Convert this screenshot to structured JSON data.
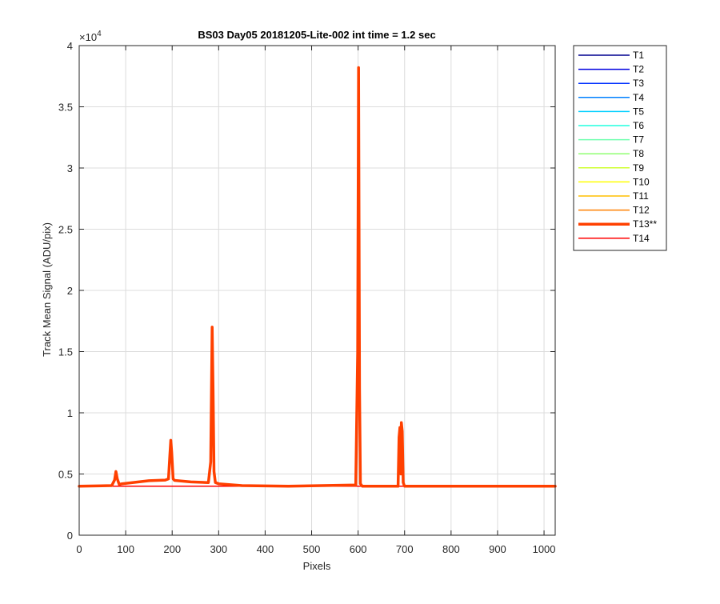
{
  "chart_data": {
    "type": "line",
    "title": "BS03 Day05 20181205-Lite-002 int time = 1.2 sec",
    "xlabel": "Pixels",
    "ylabel": "Track Mean Signal (ADU/pix)",
    "y_exponent_label": "×10",
    "y_exponent_power": "4",
    "xlim": [
      0,
      1024
    ],
    "ylim": [
      0,
      40000
    ],
    "y_scale_factor": 10000,
    "grid": true,
    "legend_position": "outside-right",
    "xticks": [
      0,
      100,
      200,
      300,
      400,
      500,
      600,
      700,
      800,
      900,
      1000
    ],
    "xtick_labels": [
      "0",
      "100",
      "200",
      "300",
      "400",
      "500",
      "600",
      "700",
      "800",
      "900",
      "1000"
    ],
    "yticks": [
      0,
      5000,
      10000,
      15000,
      20000,
      25000,
      30000,
      35000,
      40000
    ],
    "ytick_labels": [
      "0",
      "0.5",
      "1",
      "1.5",
      "2",
      "2.5",
      "3",
      "3.5",
      "4"
    ],
    "legend": [
      {
        "name": "T1",
        "color": "#00008f"
      },
      {
        "name": "T2",
        "color": "#0000df"
      },
      {
        "name": "T3",
        "color": "#0030ff"
      },
      {
        "name": "T4",
        "color": "#0080ff"
      },
      {
        "name": "T5",
        "color": "#00cfff"
      },
      {
        "name": "T6",
        "color": "#20ffdf"
      },
      {
        "name": "T7",
        "color": "#70ffaf"
      },
      {
        "name": "T8",
        "color": "#8fff70"
      },
      {
        "name": "T9",
        "color": "#cfff30"
      },
      {
        "name": "T10",
        "color": "#ffff00"
      },
      {
        "name": "T11",
        "color": "#ffbf00"
      },
      {
        "name": "T12",
        "color": "#ff8000"
      },
      {
        "name": "T13**",
        "color": "#ff4000",
        "highlight": true
      },
      {
        "name": "T14",
        "color": "#ff0000"
      }
    ],
    "series": [
      {
        "name": "T13**",
        "color": "#ff4000",
        "x": [
          0,
          70,
          76,
          79,
          82,
          86,
          92,
          150,
          185,
          192,
          195,
          197,
          199,
          202,
          205,
          240,
          278,
          283,
          286,
          288,
          290,
          293,
          300,
          350,
          450,
          595,
          599,
          601,
          603,
          605,
          609,
          686,
          688,
          690,
          692,
          693,
          695,
          697,
          700,
          1024
        ],
        "y": [
          4000,
          4050,
          4500,
          5200,
          4600,
          4150,
          4200,
          4450,
          4500,
          4600,
          6500,
          7750,
          6800,
          4600,
          4480,
          4350,
          4300,
          6000,
          17000,
          12000,
          5200,
          4300,
          4200,
          4050,
          4000,
          4100,
          15000,
          38200,
          12000,
          4200,
          4000,
          4000,
          8000,
          8800,
          5000,
          9200,
          8500,
          4300,
          4000,
          4000
        ]
      },
      {
        "name": "T14",
        "color": "#ff0000",
        "x": [
          0,
          1024
        ],
        "y": [
          4000,
          4000
        ]
      }
    ]
  }
}
